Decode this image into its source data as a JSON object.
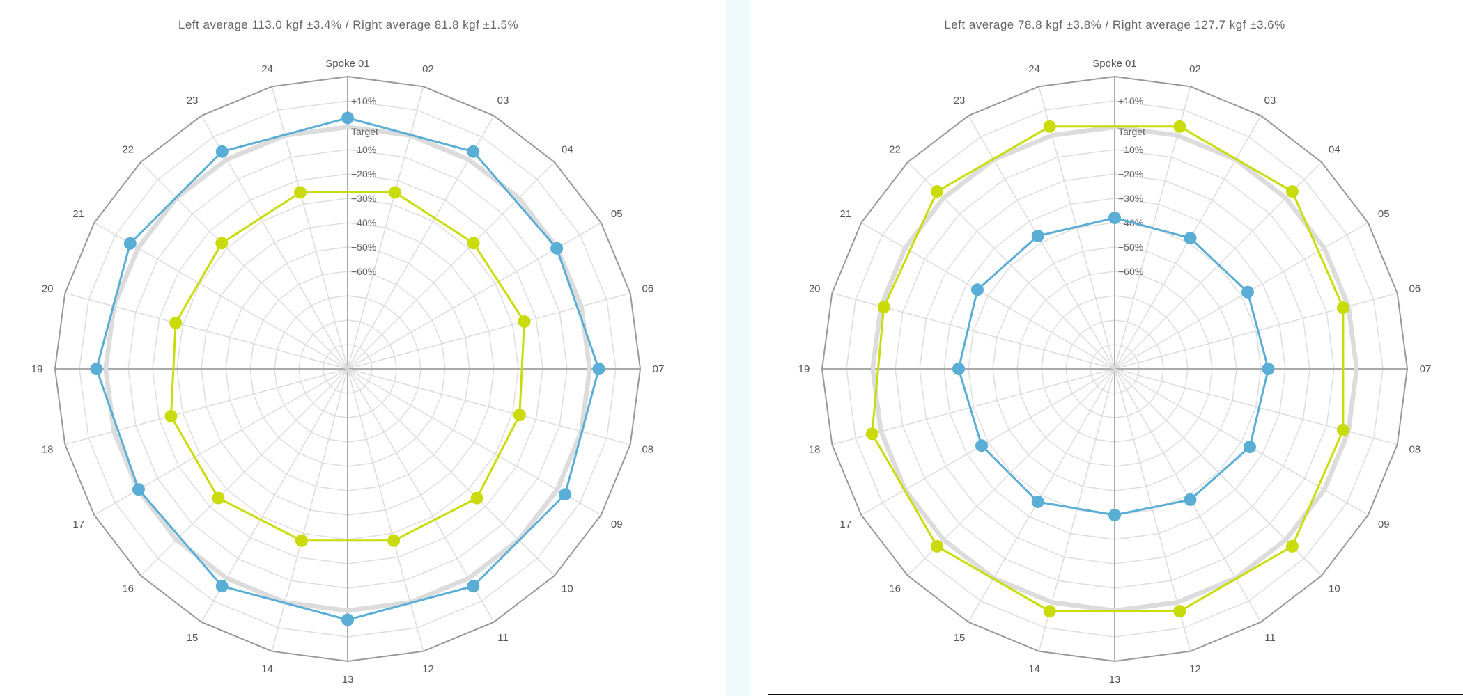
{
  "chart_data": [
    {
      "type": "radar",
      "title": "Left average 113.0 kgf ±3.4% / Right average 81.8 kgf ±1.5%",
      "categories": [
        "Spoke 01",
        "02",
        "03",
        "04",
        "05",
        "06",
        "07",
        "08",
        "09",
        "10",
        "11",
        "12",
        "13",
        "14",
        "15",
        "16",
        "17",
        "18",
        "19",
        "20",
        "21",
        "22",
        "23",
        "24"
      ],
      "radial_ticks": [
        "+10%",
        "Target",
        "−10%",
        "−20%",
        "−30%",
        "−40%",
        "−50%",
        "−60%"
      ],
      "rlim_percent": [
        -100,
        20
      ],
      "series": [
        {
          "color": "#5aaed6",
          "spokes": [
            "Spoke 01",
            "03",
            "05",
            "07",
            "09",
            "11",
            "13",
            "15",
            "17",
            "19",
            "21",
            "23"
          ],
          "values_percent": [
            3,
            3,
            -1,
            3,
            3,
            3,
            3,
            3,
            -1,
            3,
            3,
            3
          ]
        },
        {
          "color": "#c9dc0a",
          "spokes": [
            "02",
            "04",
            "06",
            "08",
            "10",
            "12",
            "14",
            "16",
            "18",
            "20",
            "22",
            "24"
          ],
          "values_percent": [
            -25,
            -27,
            -25,
            -27,
            -25,
            -27,
            -27,
            -25,
            -25,
            -27,
            -27,
            -25
          ]
        }
      ]
    },
    {
      "type": "radar",
      "title": "Left average 78.8 kgf ±3.8% / Right average 127.7 kgf ±3.6%",
      "categories": [
        "Spoke 01",
        "02",
        "03",
        "04",
        "05",
        "06",
        "07",
        "08",
        "09",
        "10",
        "11",
        "12",
        "13",
        "14",
        "15",
        "16",
        "17",
        "18",
        "19",
        "20",
        "21",
        "22",
        "23",
        "24"
      ],
      "radial_ticks": [
        "+10%",
        "Target",
        "−10%",
        "−20%",
        "−30%",
        "−40%",
        "−50%",
        "−60%"
      ],
      "rlim_percent": [
        -100,
        20
      ],
      "series": [
        {
          "color": "#5aaed6",
          "spokes": [
            "Spoke 01",
            "03",
            "05",
            "07",
            "09",
            "11",
            "13",
            "15",
            "17",
            "19",
            "21",
            "23"
          ],
          "values_percent": [
            -38,
            -38,
            -37,
            -37,
            -36,
            -38,
            -40,
            -37,
            -37,
            -36,
            -35,
            -37
          ]
        },
        {
          "color": "#c9dc0a",
          "spokes": [
            "02",
            "04",
            "06",
            "08",
            "10",
            "12",
            "14",
            "16",
            "18",
            "20",
            "22",
            "24"
          ],
          "values_percent": [
            3,
            3,
            -3,
            -3,
            3,
            3,
            3,
            3,
            3,
            -2,
            3,
            3
          ]
        }
      ]
    }
  ]
}
